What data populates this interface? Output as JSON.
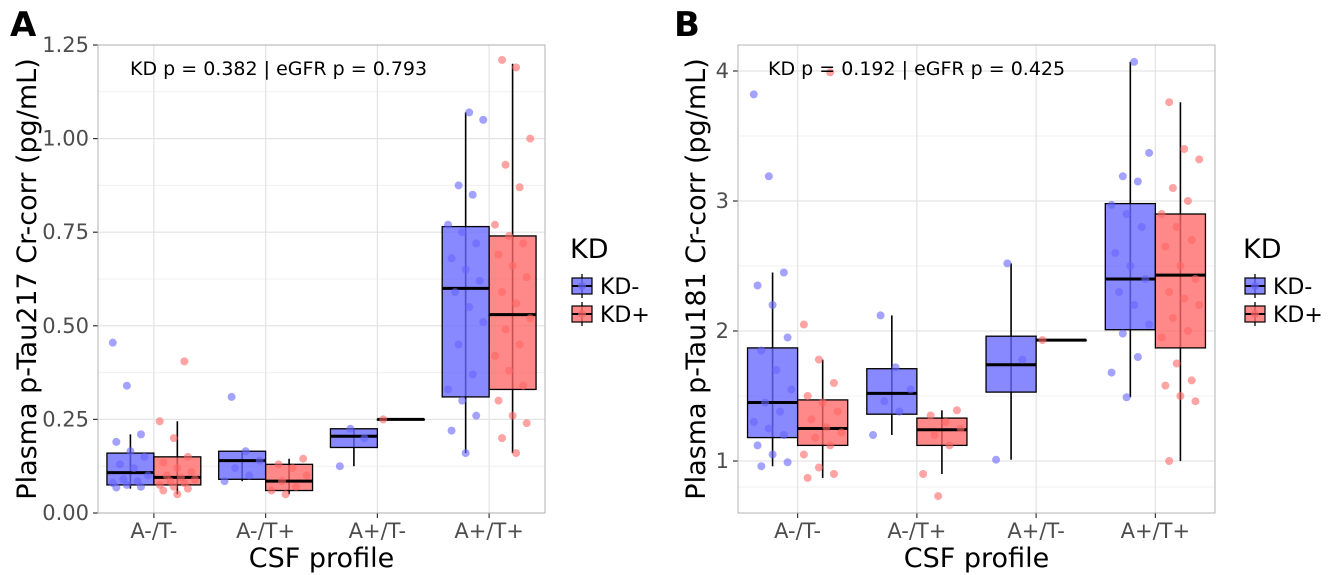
{
  "chart_data": [
    {
      "panel": "A",
      "type": "box",
      "annotation": "KD p = 0.382 | eGFR p = 0.793",
      "xlabel": "CSF profile",
      "ylabel": "Plasma p-Tau217 Cr-corr (pg/mL)",
      "categories": [
        "A-/T-",
        "A-/T+",
        "A+/T-",
        "A+/T+"
      ],
      "ylim": [
        0,
        1.25
      ],
      "yticks": [
        0.0,
        0.25,
        0.5,
        0.75,
        1.0,
        1.25
      ],
      "ytick_labels": [
        "0.00",
        "0.25",
        "0.50",
        "0.75",
        "1.00",
        "1.25"
      ],
      "grid": true,
      "legend": {
        "title": "KD",
        "placement": "right"
      },
      "series": [
        {
          "name": "KD-",
          "color": "#6666ff",
          "boxes": [
            {
              "min": 0.065,
              "q1": 0.075,
              "median": 0.108,
              "q3": 0.16,
              "max": 0.21
            },
            {
              "min": 0.085,
              "q1": 0.09,
              "median": 0.14,
              "q3": 0.165,
              "max": 0.165
            },
            {
              "min": 0.125,
              "q1": 0.175,
              "median": 0.205,
              "q3": 0.225,
              "max": 0.225
            },
            {
              "min": 0.16,
              "q1": 0.31,
              "median": 0.6,
              "q3": 0.765,
              "max": 1.07
            }
          ],
          "points": [
            [
              0.455,
              0.34,
              0.21,
              0.19,
              0.165,
              0.15,
              0.13,
              0.12,
              0.1,
              0.09,
              0.085,
              0.08,
              0.075,
              0.07,
              0.068
            ],
            [
              0.31,
              0.165,
              0.14,
              0.12,
              0.1,
              0.085
            ],
            [
              0.225,
              0.2,
              0.125
            ],
            [
              1.07,
              1.05,
              0.875,
              0.85,
              0.77,
              0.75,
              0.72,
              0.68,
              0.65,
              0.62,
              0.59,
              0.55,
              0.51,
              0.45,
              0.37,
              0.33,
              0.3,
              0.26,
              0.22,
              0.16
            ]
          ]
        },
        {
          "name": "KD+",
          "color": "#ff6666",
          "boxes": [
            {
              "min": 0.05,
              "q1": 0.075,
              "median": 0.095,
              "q3": 0.15,
              "max": 0.245
            },
            {
              "min": 0.05,
              "q1": 0.06,
              "median": 0.085,
              "q3": 0.13,
              "max": 0.145
            },
            {
              "min": 0.25,
              "q1": 0.25,
              "median": 0.25,
              "q3": 0.25,
              "max": 0.25
            },
            {
              "min": 0.16,
              "q1": 0.33,
              "median": 0.53,
              "q3": 0.74,
              "max": 1.2
            }
          ],
          "points": [
            [
              0.405,
              0.245,
              0.2,
              0.15,
              0.135,
              0.12,
              0.11,
              0.1,
              0.095,
              0.09,
              0.085,
              0.08,
              0.075,
              0.07,
              0.065,
              0.06,
              0.05
            ],
            [
              0.145,
              0.13,
              0.12,
              0.1,
              0.085,
              0.07,
              0.06,
              0.05
            ],
            [
              0.25
            ],
            [
              1.21,
              1.19,
              1.0,
              0.93,
              0.87,
              0.77,
              0.74,
              0.72,
              0.69,
              0.66,
              0.63,
              0.59,
              0.56,
              0.52,
              0.49,
              0.45,
              0.42,
              0.38,
              0.34,
              0.3,
              0.26,
              0.24,
              0.2,
              0.16
            ]
          ]
        }
      ]
    },
    {
      "panel": "B",
      "type": "box",
      "annotation": "KD p = 0.192 | eGFR p = 0.425",
      "xlabel": "CSF profile",
      "ylabel": "Plasma p-Tau181 Cr-corr (pg/mL)",
      "categories": [
        "A-/T-",
        "A-/T+",
        "A+/T-",
        "A+/T+"
      ],
      "ylim": [
        0.6,
        4.2
      ],
      "yticks": [
        1,
        2,
        3,
        4
      ],
      "ytick_labels": [
        "1",
        "2",
        "3",
        "4"
      ],
      "grid": true,
      "legend": {
        "title": "KD",
        "placement": "right"
      },
      "series": [
        {
          "name": "KD-",
          "color": "#6666ff",
          "boxes": [
            {
              "min": 0.96,
              "q1": 1.18,
              "median": 1.45,
              "q3": 1.87,
              "max": 2.45
            },
            {
              "min": 1.2,
              "q1": 1.36,
              "median": 1.52,
              "q3": 1.71,
              "max": 2.12
            },
            {
              "min": 1.01,
              "q1": 1.53,
              "median": 1.74,
              "q3": 1.96,
              "max": 2.52
            },
            {
              "min": 1.49,
              "q1": 2.01,
              "median": 2.4,
              "q3": 2.98,
              "max": 4.07
            }
          ],
          "points": [
            [
              3.82,
              3.19,
              2.45,
              2.35,
              2.2,
              1.95,
              1.85,
              1.7,
              1.55,
              1.45,
              1.38,
              1.3,
              1.25,
              1.2,
              1.12,
              1.05,
              0.99,
              0.96
            ],
            [
              2.12,
              1.72,
              1.55,
              1.46,
              1.38,
              1.2
            ],
            [
              2.52,
              1.78,
              1.01
            ],
            [
              4.07,
              3.37,
              3.19,
              3.15,
              2.97,
              2.9,
              2.8,
              2.6,
              2.5,
              2.4,
              2.3,
              2.2,
              2.05,
              1.98,
              1.8,
              1.68,
              1.49
            ]
          ]
        },
        {
          "name": "KD+",
          "color": "#ff6666",
          "boxes": [
            {
              "min": 0.87,
              "q1": 1.12,
              "median": 1.25,
              "q3": 1.47,
              "max": 1.78
            },
            {
              "min": 0.9,
              "q1": 1.12,
              "median": 1.24,
              "q3": 1.33,
              "max": 1.39
            },
            {
              "min": 1.93,
              "q1": 1.93,
              "median": 1.93,
              "q3": 1.93,
              "max": 1.93
            },
            {
              "min": 1.0,
              "q1": 1.87,
              "median": 2.43,
              "q3": 2.9,
              "max": 3.76
            }
          ],
          "points": [
            [
              3.99,
              2.05,
              1.78,
              1.6,
              1.5,
              1.45,
              1.38,
              1.32,
              1.26,
              1.22,
              1.18,
              1.12,
              1.05,
              0.95,
              0.9,
              0.87
            ],
            [
              1.39,
              1.35,
              1.3,
              1.25,
              1.2,
              1.12,
              0.9,
              0.73
            ],
            [
              1.93
            ],
            [
              3.76,
              3.4,
              3.32,
              3.1,
              3.0,
              2.9,
              2.8,
              2.7,
              2.65,
              2.5,
              2.4,
              2.3,
              2.25,
              2.2,
              2.1,
              2.0,
              1.95,
              1.75,
              1.62,
              1.58,
              1.5,
              1.46,
              1.0
            ]
          ]
        }
      ]
    }
  ]
}
